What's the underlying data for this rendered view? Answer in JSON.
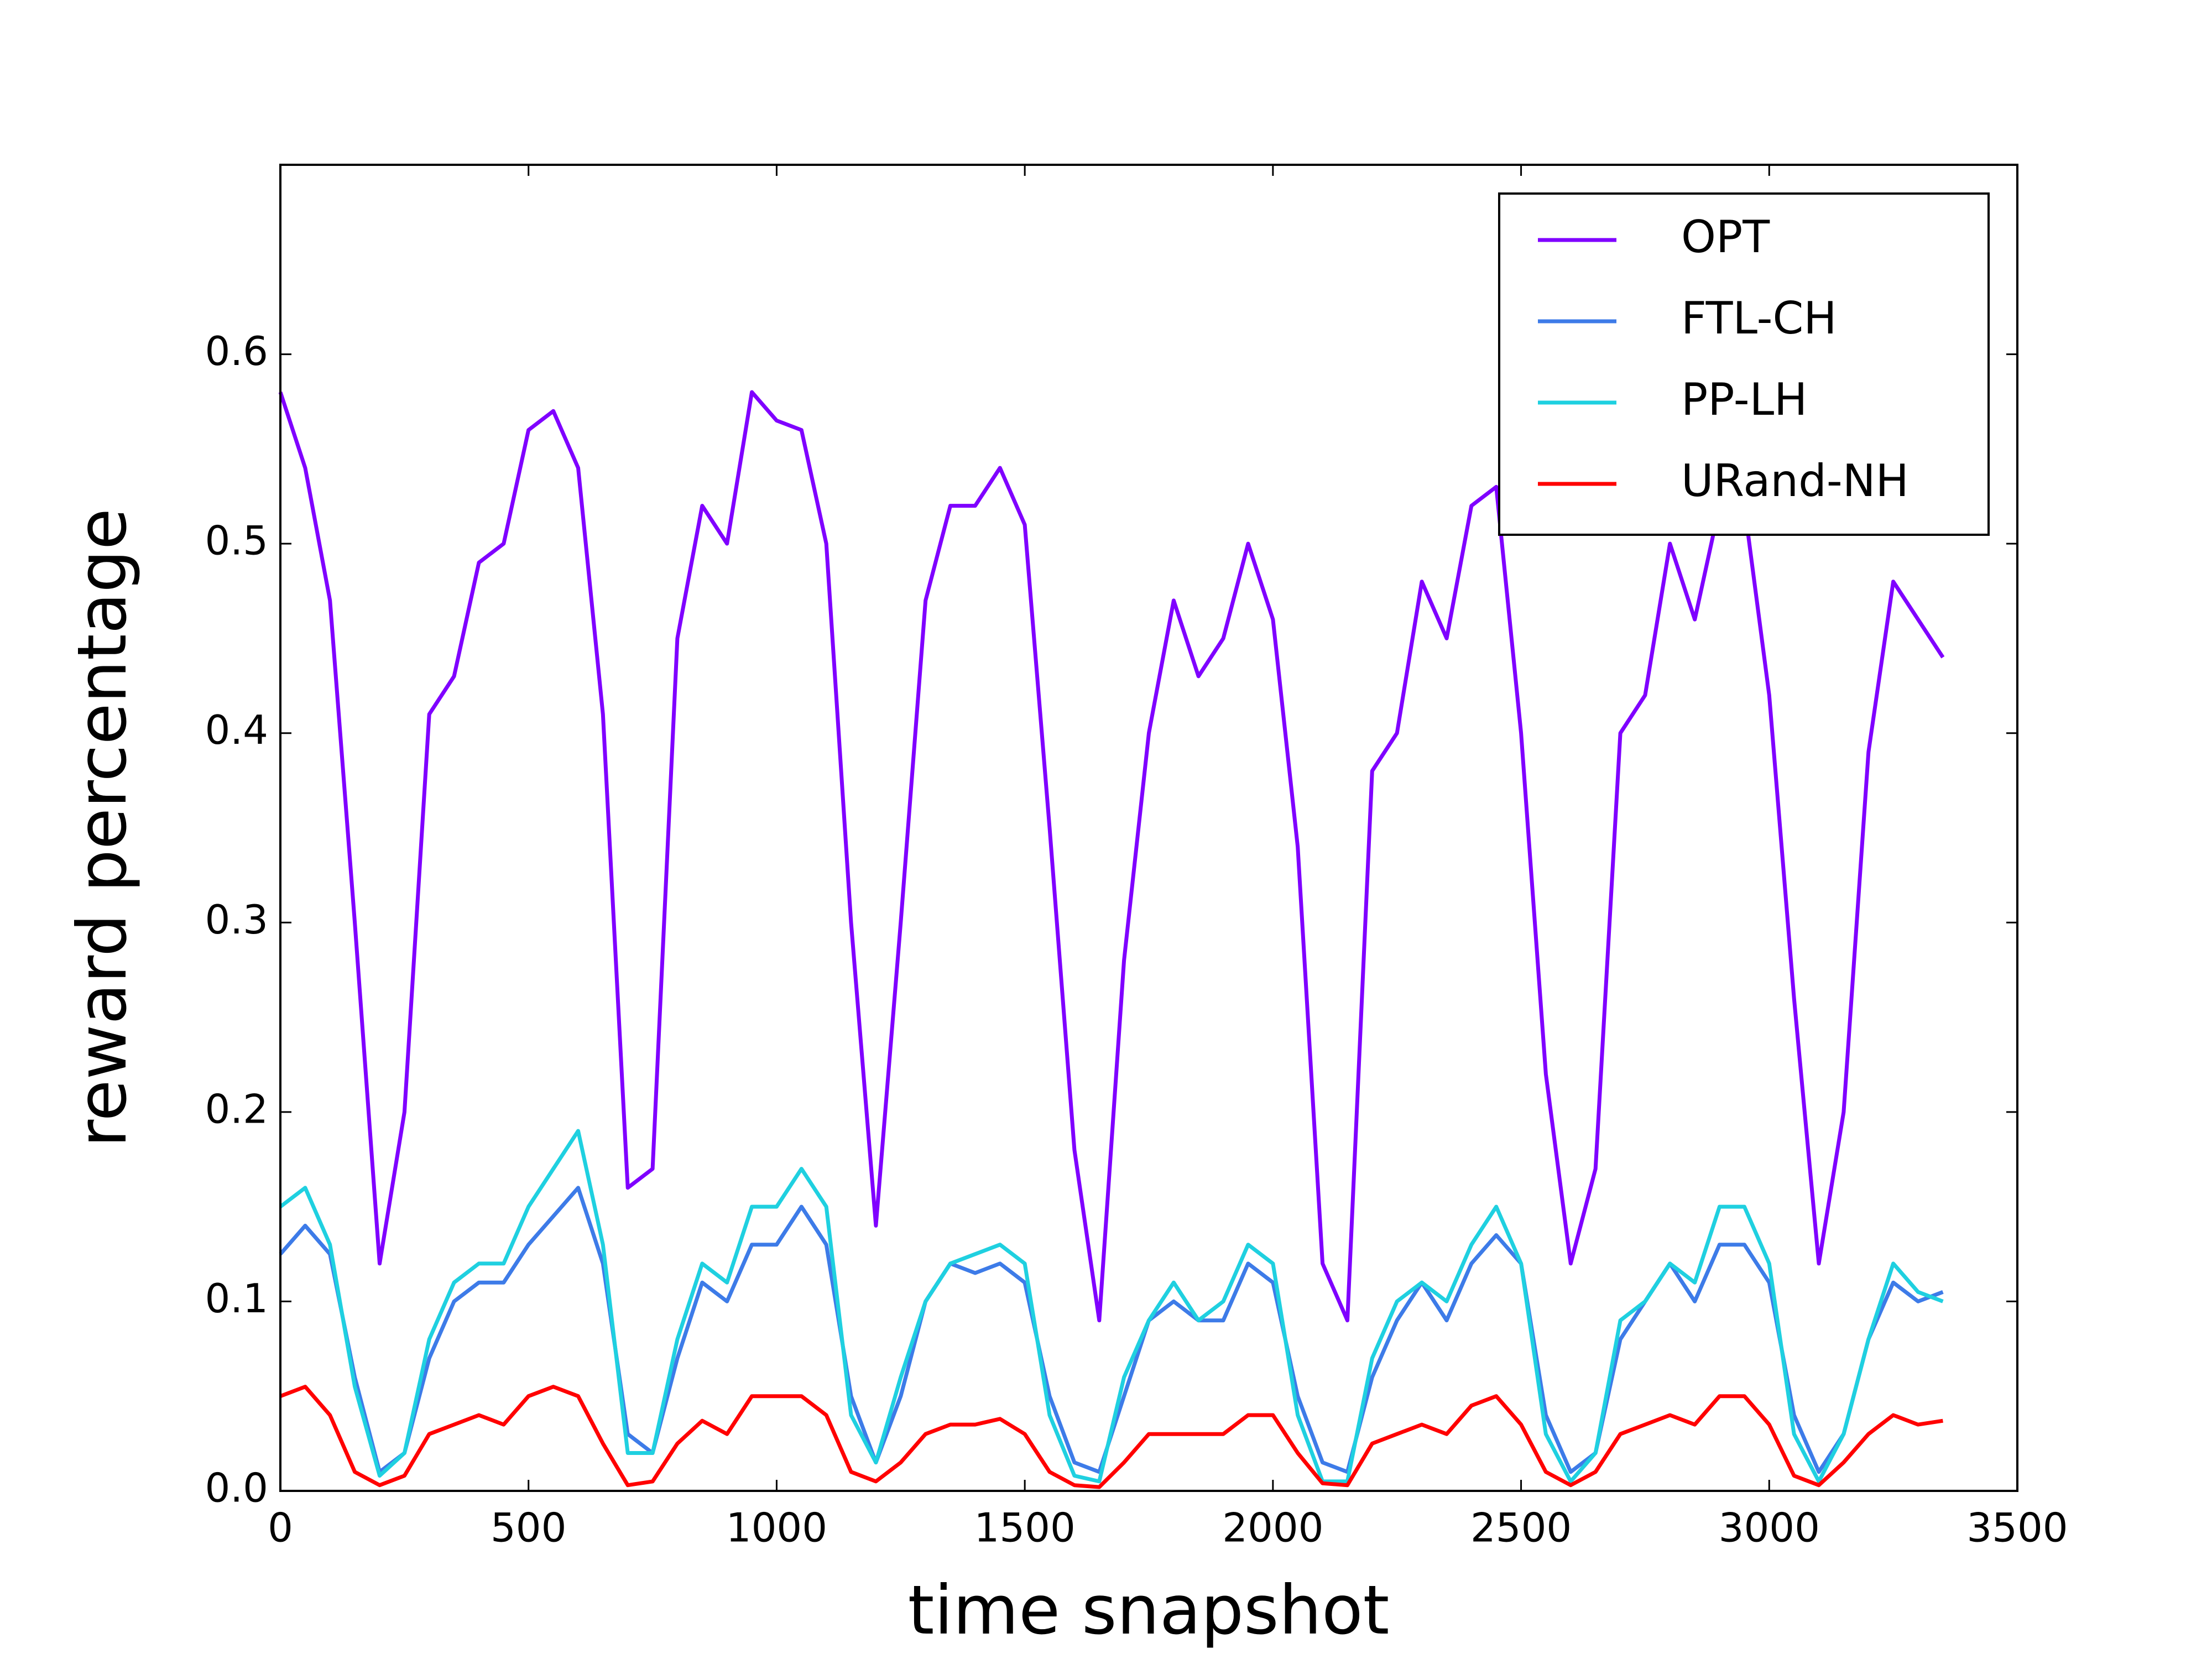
{
  "chart_data": {
    "type": "line",
    "xlabel": "time snapshot",
    "ylabel": "reward percentage",
    "x": [
      0,
      50,
      100,
      150,
      200,
      250,
      300,
      350,
      400,
      450,
      500,
      550,
      600,
      650,
      700,
      750,
      800,
      850,
      900,
      950,
      1000,
      1050,
      1100,
      1150,
      1200,
      1250,
      1300,
      1350,
      1400,
      1450,
      1500,
      1550,
      1600,
      1650,
      1700,
      1750,
      1800,
      1850,
      1900,
      1950,
      2000,
      2050,
      2100,
      2150,
      2200,
      2250,
      2300,
      2350,
      2400,
      2450,
      2500,
      2550,
      2600,
      2650,
      2700,
      2750,
      2800,
      2850,
      2900,
      2950,
      3000,
      3050,
      3100,
      3150,
      3200,
      3250,
      3300,
      3350
    ],
    "series": [
      {
        "name": "OPT",
        "color": "#7f00ff",
        "values": [
          0.58,
          0.54,
          0.47,
          0.3,
          0.12,
          0.2,
          0.41,
          0.43,
          0.49,
          0.5,
          0.56,
          0.57,
          0.54,
          0.41,
          0.16,
          0.17,
          0.45,
          0.52,
          0.5,
          0.58,
          0.565,
          0.56,
          0.5,
          0.3,
          0.14,
          0.3,
          0.47,
          0.52,
          0.52,
          0.54,
          0.51,
          0.35,
          0.18,
          0.09,
          0.28,
          0.4,
          0.47,
          0.43,
          0.45,
          0.5,
          0.46,
          0.34,
          0.12,
          0.09,
          0.38,
          0.4,
          0.48,
          0.45,
          0.52,
          0.53,
          0.4,
          0.22,
          0.12,
          0.17,
          0.4,
          0.42,
          0.5,
          0.46,
          0.52,
          0.52,
          0.42,
          0.26,
          0.12,
          0.2,
          0.39,
          0.48,
          0.46,
          0.44
        ]
      },
      {
        "name": "FTL-CH",
        "color": "#3d7be8",
        "values": [
          0.125,
          0.14,
          0.125,
          0.06,
          0.01,
          0.02,
          0.07,
          0.1,
          0.11,
          0.11,
          0.13,
          0.145,
          0.16,
          0.12,
          0.03,
          0.02,
          0.07,
          0.11,
          0.1,
          0.13,
          0.13,
          0.15,
          0.13,
          0.05,
          0.015,
          0.05,
          0.1,
          0.12,
          0.115,
          0.12,
          0.11,
          0.05,
          0.015,
          0.01,
          0.05,
          0.09,
          0.1,
          0.09,
          0.09,
          0.12,
          0.11,
          0.05,
          0.015,
          0.01,
          0.06,
          0.09,
          0.11,
          0.09,
          0.12,
          0.135,
          0.12,
          0.04,
          0.01,
          0.02,
          0.08,
          0.1,
          0.12,
          0.1,
          0.13,
          0.13,
          0.11,
          0.04,
          0.01,
          0.03,
          0.08,
          0.11,
          0.1,
          0.105
        ]
      },
      {
        "name": "PP-LH",
        "color": "#1fd0e0",
        "values": [
          0.15,
          0.16,
          0.13,
          0.055,
          0.008,
          0.02,
          0.08,
          0.11,
          0.12,
          0.12,
          0.15,
          0.17,
          0.19,
          0.13,
          0.02,
          0.02,
          0.08,
          0.12,
          0.11,
          0.15,
          0.15,
          0.17,
          0.15,
          0.04,
          0.015,
          0.06,
          0.1,
          0.12,
          0.125,
          0.13,
          0.12,
          0.04,
          0.008,
          0.005,
          0.06,
          0.09,
          0.11,
          0.09,
          0.1,
          0.13,
          0.12,
          0.04,
          0.005,
          0.005,
          0.07,
          0.1,
          0.11,
          0.1,
          0.13,
          0.15,
          0.12,
          0.03,
          0.005,
          0.02,
          0.09,
          0.1,
          0.12,
          0.11,
          0.15,
          0.15,
          0.12,
          0.03,
          0.005,
          0.03,
          0.08,
          0.12,
          0.105,
          0.1
        ]
      },
      {
        "name": "URand-NH",
        "color": "#ff0000",
        "values": [
          0.05,
          0.055,
          0.04,
          0.01,
          0.003,
          0.008,
          0.03,
          0.035,
          0.04,
          0.035,
          0.05,
          0.055,
          0.05,
          0.025,
          0.003,
          0.005,
          0.025,
          0.037,
          0.03,
          0.05,
          0.05,
          0.05,
          0.04,
          0.01,
          0.005,
          0.015,
          0.03,
          0.035,
          0.035,
          0.038,
          0.03,
          0.01,
          0.003,
          0.002,
          0.015,
          0.03,
          0.03,
          0.03,
          0.03,
          0.04,
          0.04,
          0.02,
          0.004,
          0.003,
          0.025,
          0.03,
          0.035,
          0.03,
          0.045,
          0.05,
          0.035,
          0.01,
          0.003,
          0.01,
          0.03,
          0.035,
          0.04,
          0.035,
          0.05,
          0.05,
          0.035,
          0.008,
          0.003,
          0.015,
          0.03,
          0.04,
          0.035,
          0.037
        ]
      }
    ],
    "xlim": [
      0,
      3500
    ],
    "xticks": [
      0,
      500,
      1000,
      1500,
      2000,
      2500,
      3000,
      3500
    ],
    "ylim": [
      0,
      0.7
    ],
    "yticks": [
      {
        "value": 0,
        "label": "0.0"
      },
      0.1,
      0.2,
      0.3,
      0.4,
      0.5,
      0.6
    ],
    "legend": "upper right",
    "grid": false
  }
}
